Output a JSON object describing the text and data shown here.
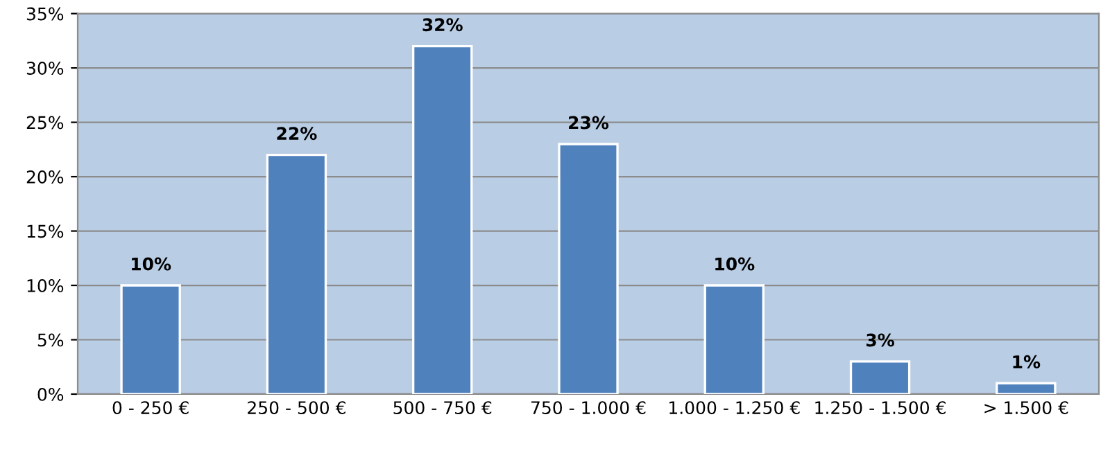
{
  "chart_data": {
    "type": "bar",
    "categories": [
      "0 - 250 €",
      "250 - 500 €",
      "500 - 750 €",
      "750 - 1.000 €",
      "1.000 - 1.250 €",
      "1.250 - 1.500 €",
      "> 1.500 €"
    ],
    "values": [
      10,
      22,
      32,
      23,
      10,
      3,
      1
    ],
    "color": "#4f81bd",
    "value_labels": [
      "10%",
      "22%",
      "32%",
      "23%",
      "10%",
      "3%",
      "1%"
    ],
    "ylim": [
      0,
      35
    ],
    "yticks": [
      {
        "value": 0,
        "label": "0%"
      },
      {
        "value": 5,
        "label": "5%"
      },
      {
        "value": 10,
        "label": "10%"
      },
      {
        "value": 15,
        "label": "15%"
      },
      {
        "value": 20,
        "label": "20%"
      },
      {
        "value": 25,
        "label": "25%"
      },
      {
        "value": 30,
        "label": "30%"
      },
      {
        "value": 35,
        "label": "35%"
      }
    ],
    "grid": "y",
    "legend": false
  }
}
